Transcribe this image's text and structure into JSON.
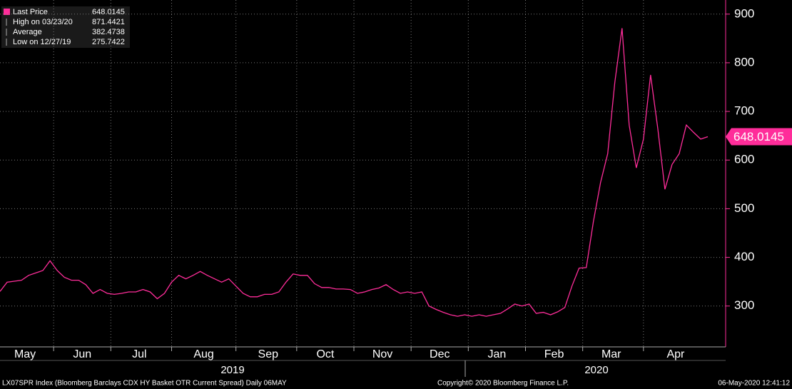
{
  "chart_data": {
    "type": "line",
    "categories": [
      null,
      null,
      null,
      "May",
      null,
      null,
      null,
      null,
      null,
      null,
      null,
      "Jun",
      null,
      null,
      null,
      null,
      null,
      null,
      null,
      "Jul",
      null,
      null,
      null,
      null,
      null,
      null,
      null,
      null,
      "Aug",
      null,
      null,
      null,
      null,
      null,
      null,
      null,
      null,
      "Sep",
      null,
      null,
      null,
      null,
      null,
      null,
      null,
      "Oct",
      null,
      null,
      null,
      null,
      null,
      null,
      null,
      "Nov",
      null,
      null,
      null,
      null,
      null,
      null,
      null,
      "Dec",
      null,
      null,
      null,
      null,
      null,
      null,
      null,
      "Jan",
      null,
      null,
      null,
      null,
      null,
      null,
      null,
      "Feb",
      null,
      null,
      null,
      null,
      null,
      null,
      null,
      "Mar",
      null,
      null,
      null,
      null,
      null,
      null,
      null,
      null,
      "Apr",
      null,
      null,
      null,
      null,
      null
    ],
    "series": [
      {
        "name": "Last Price",
        "color": "#ff2d9a",
        "values": [
          330,
          349,
          351,
          353,
          363,
          368,
          373,
          393,
          373,
          359,
          353,
          353,
          344,
          326,
          334,
          326,
          324,
          326,
          329,
          329,
          334,
          329,
          315,
          326,
          349,
          363,
          356,
          363,
          371,
          363,
          356,
          349,
          356,
          341,
          326,
          319,
          319,
          324,
          324,
          329,
          349,
          366,
          363,
          363,
          346,
          338,
          338,
          335,
          335,
          334,
          326,
          329,
          334,
          337,
          344,
          334,
          326,
          329,
          326,
          329,
          300,
          293,
          287,
          282,
          279,
          282,
          279,
          282,
          279,
          282,
          285,
          294,
          304,
          300,
          304,
          285,
          287,
          282,
          288,
          297,
          341,
          378,
          379,
          474,
          554,
          613,
          760,
          871,
          672,
          584,
          643,
          775,
          665,
          540,
          591,
          613,
          672,
          657,
          643,
          648.0145
        ]
      }
    ],
    "stats": [
      {
        "label": "High on 03/23/20",
        "value": 871.4421
      },
      {
        "label": "Average",
        "value": 382.4738
      },
      {
        "label": "Low on 12/27/19",
        "value": 275.7422
      }
    ],
    "year_labels": [
      "2019",
      "2020"
    ],
    "ylim": [
      216,
      929
    ],
    "yticks": [
      300,
      400,
      500,
      600,
      700,
      800,
      900
    ],
    "grid": true,
    "footer_left": "LX07SPR Index (Bloomberg Barclays CDX HY Basket OTR Current Spread)  Daily 06MAY",
    "footer_center": "Copyright© 2020 Bloomberg Finance L.P.",
    "footer_right": "06-May-2020 12:41:12"
  }
}
